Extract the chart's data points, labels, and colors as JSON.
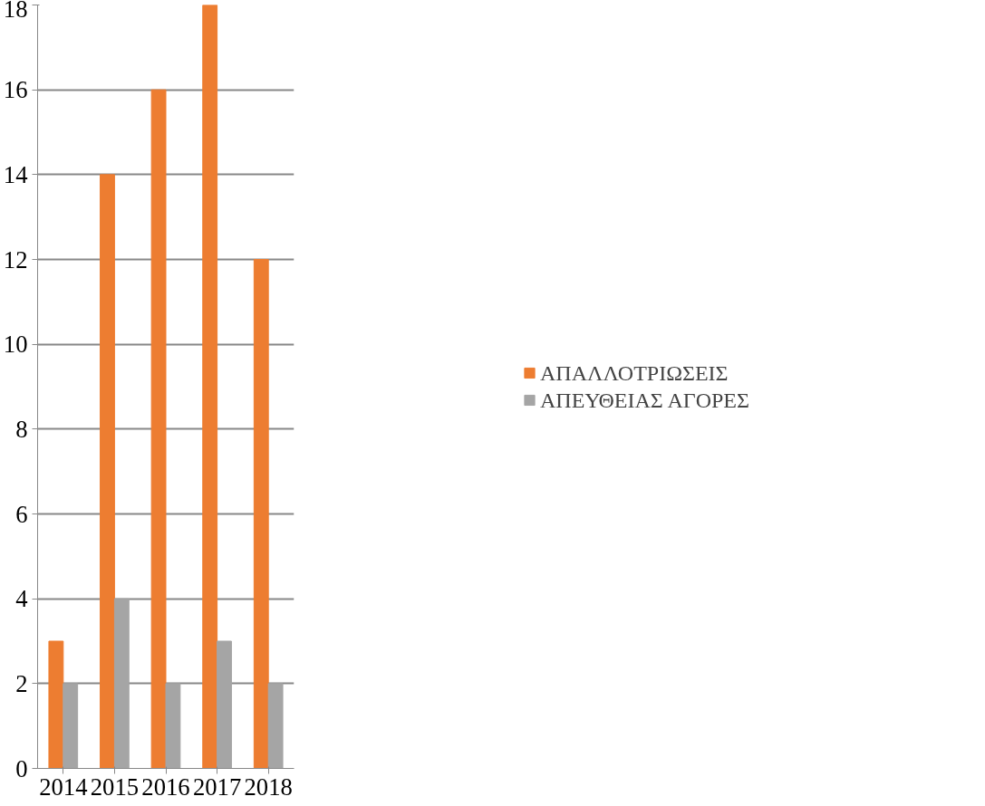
{
  "chart_data": {
    "type": "bar",
    "categories": [
      "2014",
      "2015",
      "2016",
      "2017",
      "2018"
    ],
    "series": [
      {
        "name": "ΑΠΑΛΛΟΤΡΙΩΣΕΙΣ",
        "color": "#ed7d31",
        "values": [
          3,
          14,
          16,
          18,
          12
        ]
      },
      {
        "name": "ΑΠΕΥΘΕΙΑΣ ΑΓΟΡΕΣ",
        "color": "#a5a5a5",
        "values": [
          2,
          4,
          2,
          3,
          2
        ]
      }
    ],
    "ylim": [
      0,
      18
    ],
    "yticks": [
      0,
      2,
      4,
      6,
      8,
      10,
      12,
      14,
      16,
      18
    ],
    "grid": "y",
    "legend": "right"
  }
}
